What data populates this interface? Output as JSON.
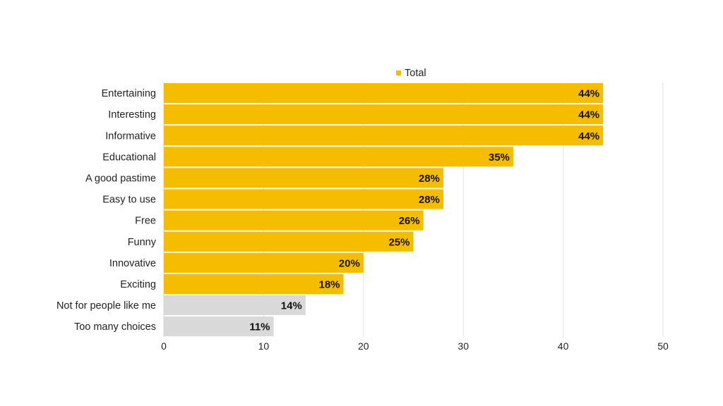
{
  "chart_data": {
    "type": "bar",
    "orientation": "horizontal",
    "title": "",
    "xlabel": "",
    "ylabel": "",
    "categories": [
      "Entertaining",
      "Interesting",
      "Informative",
      "Educational",
      "A good pastime",
      "Easy to use",
      "Free",
      "Funny",
      "Innovative",
      "Exciting",
      "Not for people like me",
      "Too many choices"
    ],
    "series": [
      {
        "name": "Total",
        "values": [
          44,
          44,
          44,
          35,
          28,
          28,
          26,
          25,
          20,
          18,
          14.2,
          11
        ],
        "data_labels": [
          "44%",
          "44%",
          "44%",
          "35%",
          "28%",
          "28%",
          "26%",
          "25%",
          "20%",
          "18%",
          "14%",
          "11%"
        ],
        "colors": [
          "#F5BD00",
          "#F5BD00",
          "#F5BD00",
          "#F5BD00",
          "#F5BD00",
          "#F5BD00",
          "#F5BD00",
          "#F5BD00",
          "#F5BD00",
          "#F5BD00",
          "#D9D9D9",
          "#D9D9D9"
        ]
      }
    ],
    "xlim": [
      0,
      50
    ],
    "xticks": [
      "0",
      "10",
      "20",
      "30",
      "40",
      "50"
    ],
    "grid": true,
    "legend": {
      "position": "top",
      "entries": [
        "Total"
      ],
      "marker_color": "#F5BD00"
    }
  }
}
